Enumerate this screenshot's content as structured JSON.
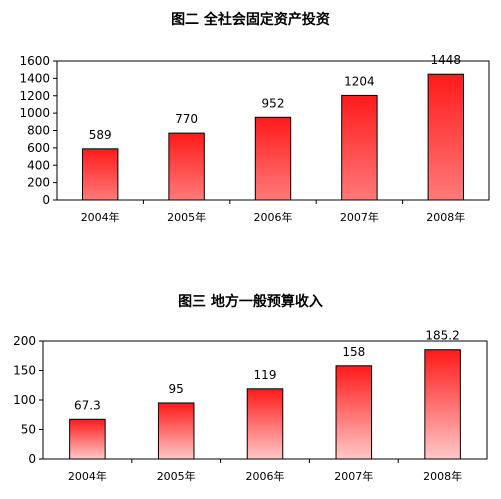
{
  "chart_data": [
    {
      "type": "bar",
      "title": "图二  全社会固定资产投资",
      "categories": [
        "2004年",
        "2005年",
        "2006年",
        "2007年",
        "2008年"
      ],
      "values": [
        589,
        770,
        952,
        1204,
        1448
      ],
      "data_labels": [
        "589",
        "770",
        "952",
        "1204",
        "1448"
      ],
      "ylim": [
        0,
        1600
      ],
      "yticks": [
        0,
        200,
        400,
        600,
        800,
        1000,
        1200,
        1400,
        1600
      ],
      "xlabel": "",
      "ylabel": "",
      "grid": false,
      "bar_color": "#ff1a1a",
      "bar_fade_color": "#ff7a7a"
    },
    {
      "type": "bar",
      "title": "图三  地方一般预算收入",
      "categories": [
        "2004年",
        "2005年",
        "2006年",
        "2007年",
        "2008年"
      ],
      "values": [
        67.3,
        95,
        119,
        158,
        185.2
      ],
      "data_labels": [
        "67.3",
        "95",
        "119",
        "158",
        "185.2"
      ],
      "ylim": [
        0,
        200
      ],
      "yticks": [
        0,
        50,
        100,
        150,
        200
      ],
      "xlabel": "",
      "ylabel": "",
      "grid": false,
      "bar_color": "#ff1a1a",
      "bar_fade_color": "#ffc8c8"
    }
  ]
}
